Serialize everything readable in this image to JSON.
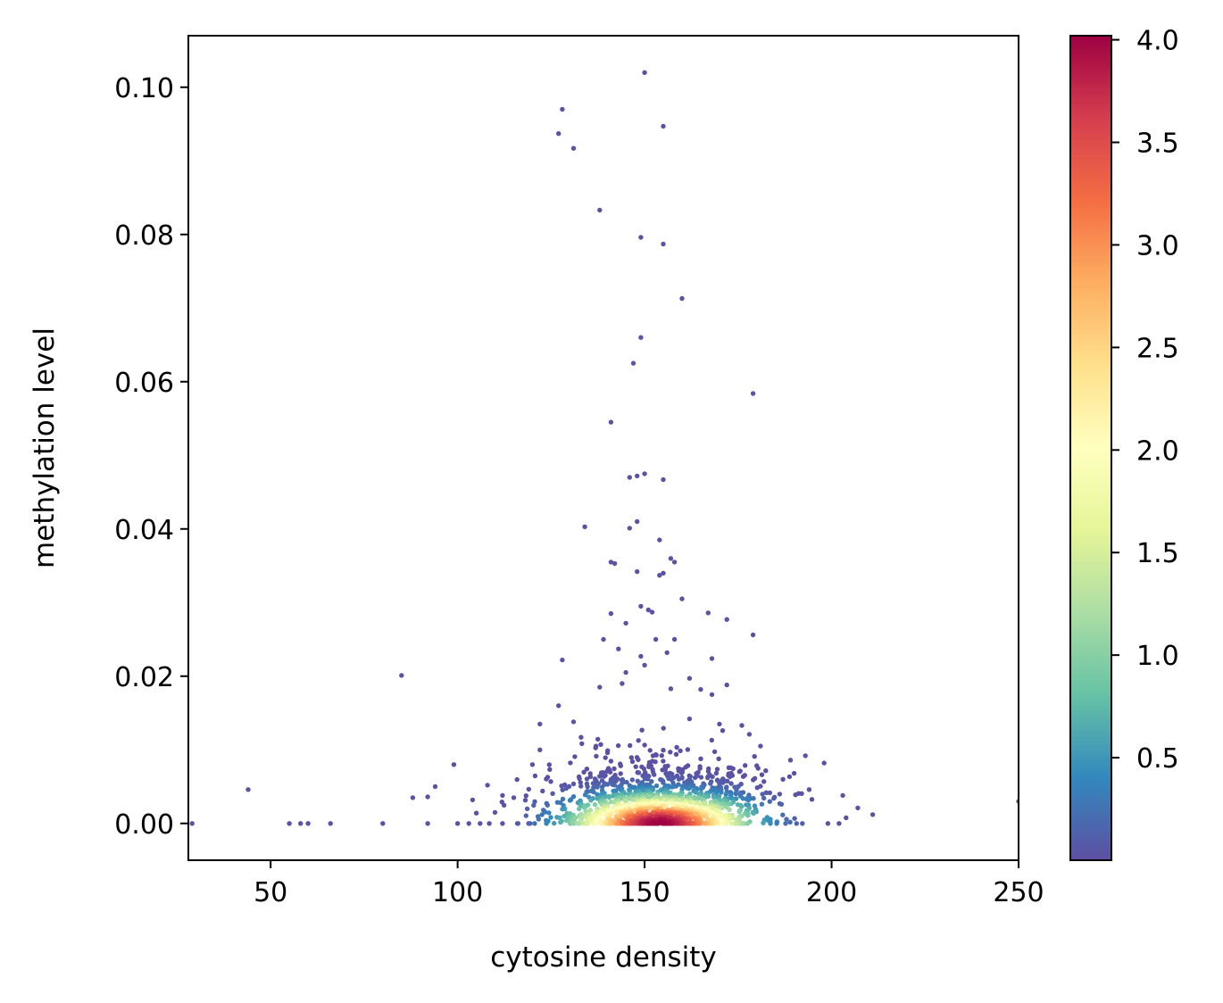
{
  "chart_data": {
    "type": "scatter",
    "xlabel": "cytosine density",
    "ylabel": "methylation level",
    "xlim": [
      28,
      250
    ],
    "ylim": [
      -0.005,
      0.107
    ],
    "x_ticks": [
      50,
      100,
      150,
      200,
      250
    ],
    "x_tick_labels": [
      "50",
      "100",
      "150",
      "200",
      "250"
    ],
    "y_ticks": [
      0.0,
      0.02,
      0.04,
      0.06,
      0.08,
      0.1
    ],
    "y_tick_labels": [
      "0.00",
      "0.02",
      "0.04",
      "0.06",
      "0.08",
      "0.10"
    ],
    "colorbar": {
      "colormap": "Spectral_r",
      "range": [
        0.0,
        4.02
      ],
      "ticks": [
        0.5,
        1.0,
        1.5,
        2.0,
        2.5,
        3.0,
        3.5,
        4.0
      ],
      "tick_labels": [
        "0.5",
        "1.0",
        "1.5",
        "2.0",
        "2.5",
        "3.0",
        "3.5",
        "4.0"
      ],
      "stops": [
        "#5e4fa2",
        "#3288bd",
        "#66c2a5",
        "#abdda4",
        "#e6f598",
        "#ffffbf",
        "#fee08b",
        "#fdae61",
        "#f46d43",
        "#d53e4f",
        "#9e0142"
      ]
    },
    "grid": false,
    "legend": false,
    "outlier_points": [
      [
        150,
        0.102
      ],
      [
        128,
        0.097
      ],
      [
        155,
        0.0947
      ],
      [
        127,
        0.0937
      ],
      [
        131,
        0.0917
      ],
      [
        138,
        0.0833
      ],
      [
        149,
        0.0796
      ],
      [
        155,
        0.0787
      ],
      [
        160,
        0.0713
      ],
      [
        149,
        0.066
      ],
      [
        147,
        0.0625
      ],
      [
        179,
        0.0584
      ],
      [
        141,
        0.0545
      ],
      [
        146,
        0.047
      ],
      [
        148,
        0.0472
      ],
      [
        150,
        0.0475
      ],
      [
        155,
        0.0467
      ],
      [
        146,
        0.0401
      ],
      [
        134,
        0.0403
      ],
      [
        148,
        0.041
      ],
      [
        154,
        0.0385
      ],
      [
        157,
        0.036
      ],
      [
        158,
        0.0355
      ],
      [
        141,
        0.0355
      ],
      [
        142,
        0.0353
      ],
      [
        155,
        0.034
      ],
      [
        154,
        0.0337
      ],
      [
        148,
        0.0342
      ],
      [
        160,
        0.0305
      ],
      [
        149,
        0.0295
      ],
      [
        151,
        0.029
      ],
      [
        152,
        0.0287
      ],
      [
        141,
        0.0285
      ],
      [
        167,
        0.0286
      ],
      [
        145,
        0.0272
      ],
      [
        172,
        0.0277
      ],
      [
        179,
        0.0256
      ],
      [
        139,
        0.025
      ],
      [
        153,
        0.025
      ],
      [
        158,
        0.025
      ],
      [
        143,
        0.0237
      ],
      [
        149,
        0.0227
      ],
      [
        156,
        0.0232
      ],
      [
        168,
        0.0224
      ],
      [
        128,
        0.0222
      ],
      [
        85,
        0.0201
      ],
      [
        145,
        0.0205
      ],
      [
        162,
        0.0197
      ],
      [
        150,
        0.0215
      ],
      [
        138,
        0.0185
      ],
      [
        144,
        0.019
      ],
      [
        157,
        0.0183
      ],
      [
        165,
        0.0182
      ],
      [
        172,
        0.0188
      ],
      [
        168,
        0.0175
      ],
      [
        127,
        0.016
      ],
      [
        44,
        0.0046
      ],
      [
        250,
        0.003
      ],
      [
        29,
        0.0
      ],
      [
        55,
        0.0
      ],
      [
        58,
        0.0
      ],
      [
        60,
        0.0
      ],
      [
        66,
        0.0
      ],
      [
        80,
        0.0
      ],
      [
        92,
        0.0
      ],
      [
        99,
        0.008
      ],
      [
        94,
        0.005
      ],
      [
        88,
        0.0035
      ],
      [
        92,
        0.0036
      ],
      [
        104,
        0.0032
      ],
      [
        108,
        0.0052
      ],
      [
        105,
        0.0014
      ],
      [
        110,
        0.0015
      ],
      [
        112,
        0.0038
      ],
      [
        115,
        0.0035
      ],
      [
        122,
        0.0135
      ],
      [
        122,
        0.01
      ],
      [
        120,
        0.008
      ],
      [
        131,
        0.0138
      ],
      [
        181,
        0.0105
      ],
      [
        189,
        0.0086
      ],
      [
        193,
        0.0092
      ],
      [
        198,
        0.0082
      ],
      [
        207,
        0.0021
      ],
      [
        211,
        0.0012
      ],
      [
        203,
        0.0038
      ],
      [
        199,
        0.0
      ],
      [
        202,
        0.0
      ],
      [
        100,
        0.0
      ],
      [
        103,
        0.0
      ],
      [
        106,
        0.0
      ],
      [
        112,
        0.0
      ],
      [
        116,
        0.0
      ],
      [
        119,
        0.0
      ],
      [
        187,
        0.006
      ],
      [
        190,
        0.0068
      ],
      [
        194,
        0.0046
      ],
      [
        176,
        0.0133
      ],
      [
        170,
        0.0135
      ],
      [
        162,
        0.0142
      ],
      [
        137,
        0.0105
      ],
      [
        133,
        0.0117
      ],
      [
        178,
        0.0121
      ]
    ],
    "cloud": {
      "n_points": 1400,
      "x_center": 154,
      "x_spread": 14,
      "y_spread": 0.004,
      "peak_density": 4.02
    }
  }
}
